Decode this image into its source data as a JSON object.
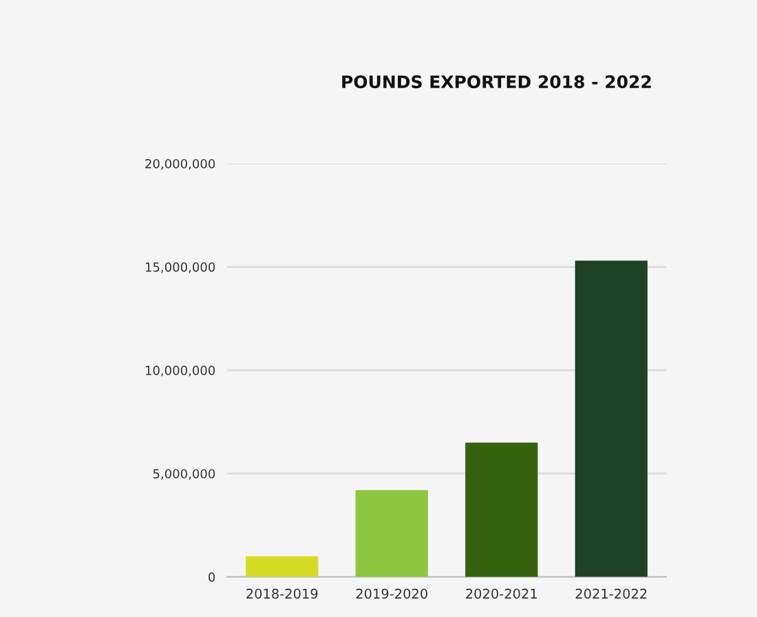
{
  "chart_data": {
    "type": "bar",
    "title": "POUNDS EXPORTED 2018 - 2022",
    "categories": [
      "2018-2019",
      "2019-2020",
      "2020-2021",
      "2021-2022"
    ],
    "values": [
      1000000,
      4200000,
      6500000,
      15300000
    ],
    "colors": [
      "#d6dc26",
      "#8dc63f",
      "#35620f",
      "#1f4226"
    ],
    "ylim": [
      0,
      20000000
    ],
    "yticks": [
      {
        "value": 0,
        "label": "0"
      },
      {
        "value": 5000000,
        "label": "5,000,000"
      },
      {
        "value": 10000000,
        "label": "10,000,000"
      },
      {
        "value": 15000000,
        "label": "15,000,000"
      },
      {
        "value": 20000000,
        "label": "20,000,000"
      }
    ],
    "grid": "y"
  }
}
